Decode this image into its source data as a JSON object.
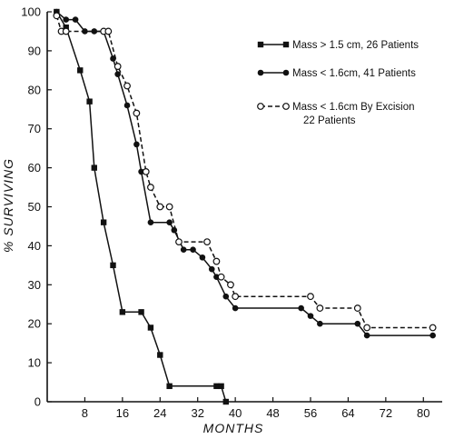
{
  "chart_data": {
    "type": "line",
    "title": "",
    "xlabel": "MONTHS",
    "ylabel": "% SURVIVING",
    "xlim": [
      0,
      84
    ],
    "ylim": [
      0,
      100
    ],
    "x_ticks": [
      8,
      16,
      24,
      32,
      40,
      48,
      56,
      64,
      72,
      80
    ],
    "y_ticks": [
      0,
      10,
      20,
      30,
      40,
      50,
      60,
      70,
      80,
      90,
      100
    ],
    "grid": false,
    "legend_position": "top-right",
    "series": [
      {
        "name": "Mass > 1.5 cm, 26 Patients",
        "marker": "filled-square",
        "line": "solid",
        "color": "#111111",
        "points": [
          [
            2,
            100
          ],
          [
            4,
            96
          ],
          [
            7,
            85
          ],
          [
            9,
            77
          ],
          [
            10,
            60
          ],
          [
            12,
            46
          ],
          [
            14,
            35
          ],
          [
            16,
            23
          ],
          [
            20,
            23
          ],
          [
            22,
            19
          ],
          [
            24,
            12
          ],
          [
            26,
            4
          ],
          [
            36,
            4
          ],
          [
            37,
            4
          ],
          [
            38,
            0
          ]
        ]
      },
      {
        "name": "Mass < 1.6cm, 41 Patients",
        "marker": "filled-circle",
        "line": "solid",
        "color": "#111111",
        "points": [
          [
            2,
            100
          ],
          [
            4,
            98
          ],
          [
            6,
            98
          ],
          [
            8,
            95
          ],
          [
            10,
            95
          ],
          [
            12,
            95
          ],
          [
            14,
            88
          ],
          [
            15,
            84
          ],
          [
            17,
            76
          ],
          [
            19,
            66
          ],
          [
            20,
            59
          ],
          [
            22,
            46
          ],
          [
            26,
            46
          ],
          [
            27,
            44
          ],
          [
            29,
            39
          ],
          [
            31,
            39
          ],
          [
            33,
            37
          ],
          [
            35,
            34
          ],
          [
            36,
            32
          ],
          [
            38,
            27
          ],
          [
            40,
            24
          ],
          [
            54,
            24
          ],
          [
            56,
            22
          ],
          [
            58,
            20
          ],
          [
            66,
            20
          ],
          [
            68,
            17
          ],
          [
            82,
            17
          ]
        ]
      },
      {
        "name": "Mass < 1.6cm By Excision\n22 Patients",
        "marker": "open-circle",
        "line": "dashed",
        "color": "#111111",
        "points": [
          [
            2,
            99
          ],
          [
            3,
            95
          ],
          [
            4,
            95
          ],
          [
            12,
            95
          ],
          [
            13,
            95
          ],
          [
            15,
            86
          ],
          [
            17,
            81
          ],
          [
            19,
            74
          ],
          [
            21,
            59
          ],
          [
            22,
            55
          ],
          [
            24,
            50
          ],
          [
            26,
            50
          ],
          [
            28,
            41
          ],
          [
            34,
            41
          ],
          [
            36,
            36
          ],
          [
            37,
            32
          ],
          [
            39,
            30
          ],
          [
            40,
            27
          ],
          [
            56,
            27
          ],
          [
            58,
            24
          ],
          [
            66,
            24
          ],
          [
            68,
            19
          ],
          [
            82,
            19
          ]
        ]
      }
    ]
  }
}
